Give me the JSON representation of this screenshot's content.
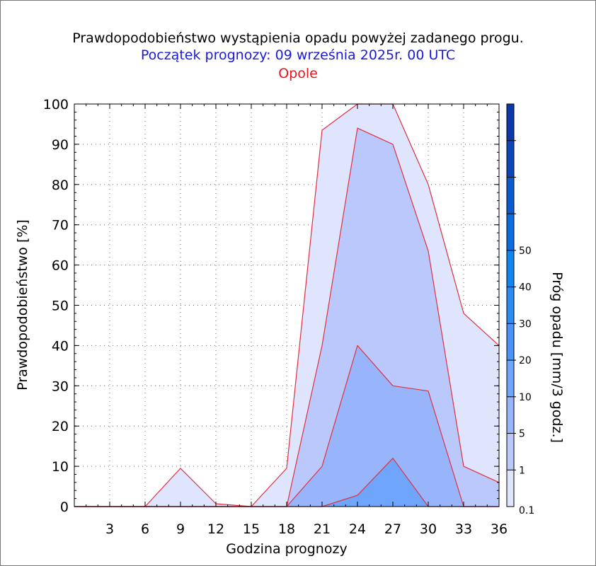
{
  "title": "Prawdopodobieństwo wystąpienia opadu powyżej zadanego progu.",
  "subtitle": "Początek prognozy: 09 września 2025r. 00 UTC",
  "station": "Opole",
  "colors": {
    "title": "#000000",
    "subtitle": "#1a1adc",
    "station": "#e8141e",
    "outline": "#e03040",
    "thresholds": [
      "#dfe5fd",
      "#bac8fb",
      "#98b5fb",
      "#6fa5fb",
      "#4c93f8",
      "#2c8bf1",
      "#0f86f0",
      "#0a6ee0",
      "#0a5ad0",
      "#0a47b8",
      "#0a3aa8"
    ]
  },
  "chart_data": {
    "type": "area",
    "title": "Prawdopodobieństwo wystąpienia opadu powyżej zadanego progu.",
    "xlabel": "Godzina prognozy",
    "ylabel": "Prawdopodobieństwo [%]",
    "xlim": [
      0,
      36
    ],
    "ylim": [
      0,
      100
    ],
    "x_ticks": [
      3,
      6,
      9,
      12,
      15,
      18,
      21,
      24,
      27,
      30,
      33,
      36
    ],
    "y_ticks": [
      0,
      10,
      20,
      30,
      40,
      50,
      60,
      70,
      80,
      90,
      100
    ],
    "grid": true,
    "x": [
      0,
      3,
      6,
      9,
      12,
      15,
      18,
      21,
      24,
      27,
      30,
      33,
      36
    ],
    "series": [
      {
        "name": "0.1",
        "values": [
          0,
          0,
          0,
          9.5,
          0.7,
          0,
          9.5,
          93.5,
          100,
          100,
          80,
          48,
          40
        ]
      },
      {
        "name": "1",
        "values": [
          0,
          0,
          0,
          0,
          0,
          0,
          0,
          40,
          94,
          90,
          63.5,
          10,
          6
        ]
      },
      {
        "name": "5",
        "values": [
          0,
          0,
          0,
          0,
          0,
          0,
          0,
          10,
          40,
          30,
          28.7,
          0,
          0
        ]
      },
      {
        "name": "10",
        "values": [
          0,
          0,
          0,
          0,
          0,
          0,
          0,
          0,
          2.8,
          12,
          0,
          0,
          0
        ]
      }
    ],
    "colorbar": {
      "label": "Próg opadu [mm/3 godz.]",
      "tick_labels": [
        "0.1",
        "1",
        "5",
        "10",
        "20",
        "30",
        "40",
        "50"
      ],
      "levels": 11
    }
  }
}
